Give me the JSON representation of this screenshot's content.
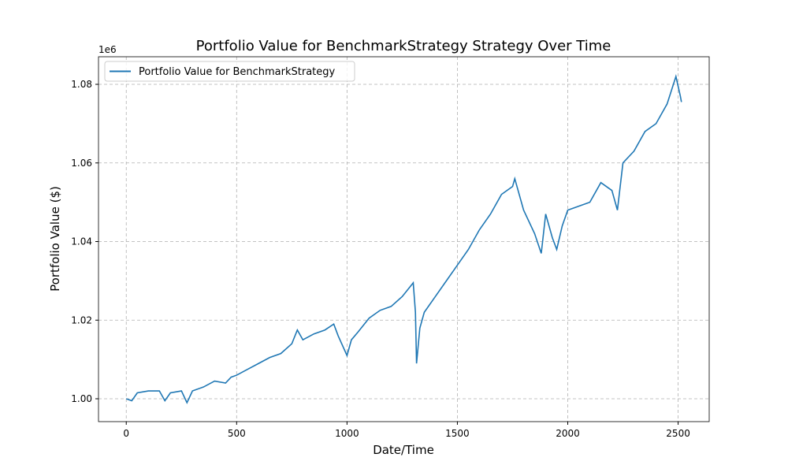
{
  "chart_data": {
    "type": "line",
    "title": "Portfolio Value for BenchmarkStrategy Strategy Over Time",
    "x_label": "Date/Time",
    "y_label": "Portfolio Value ($)",
    "y_offset_label": "1e6",
    "x": [
      0,
      25,
      50,
      100,
      150,
      175,
      200,
      250,
      275,
      300,
      350,
      400,
      450,
      475,
      500,
      550,
      600,
      650,
      700,
      750,
      775,
      800,
      850,
      900,
      940,
      960,
      1000,
      1020,
      1050,
      1100,
      1150,
      1200,
      1250,
      1300,
      1310,
      1315,
      1330,
      1350,
      1400,
      1450,
      1500,
      1550,
      1600,
      1650,
      1700,
      1750,
      1760,
      1800,
      1850,
      1880,
      1900,
      1930,
      1950,
      1975,
      2000,
      2050,
      2100,
      2150,
      2200,
      2225,
      2250,
      2300,
      2350,
      2400,
      2450,
      2490,
      2510,
      2515
    ],
    "series": [
      {
        "name": "Portfolio Value for BenchmarkStrategy",
        "color": "#1f77b4",
        "values": [
          1000000,
          999500,
          1001500,
          1002000,
          1002000,
          999500,
          1001500,
          1002000,
          999000,
          1002000,
          1003000,
          1004500,
          1004000,
          1005500,
          1006000,
          1007500,
          1009000,
          1010500,
          1011500,
          1014000,
          1017500,
          1015000,
          1016500,
          1017500,
          1019000,
          1016000,
          1011000,
          1015000,
          1017000,
          1020500,
          1022500,
          1023500,
          1026000,
          1029500,
          1022000,
          1009000,
          1018000,
          1022000,
          1026000,
          1030000,
          1034000,
          1038000,
          1043000,
          1047000,
          1052000,
          1054000,
          1056000,
          1048000,
          1042000,
          1037000,
          1047000,
          1041000,
          1038000,
          1044000,
          1048000,
          1049000,
          1050000,
          1055000,
          1053000,
          1048000,
          1060000,
          1063000,
          1068000,
          1070000,
          1075000,
          1082000,
          1077000,
          1075500
        ]
      }
    ],
    "xlim": [
      -125.75,
      2640.75
    ],
    "ylim": [
      994186,
      1087018
    ],
    "xticks": [
      0,
      500,
      1000,
      1500,
      2000,
      2500
    ],
    "yticks": [
      {
        "value": 1000000,
        "label": "1.00"
      },
      {
        "value": 1020000,
        "label": "1.02"
      },
      {
        "value": 1040000,
        "label": "1.04"
      },
      {
        "value": 1060000,
        "label": "1.06"
      },
      {
        "value": 1080000,
        "label": "1.08"
      }
    ],
    "grid": true,
    "legend": "upper-left"
  }
}
